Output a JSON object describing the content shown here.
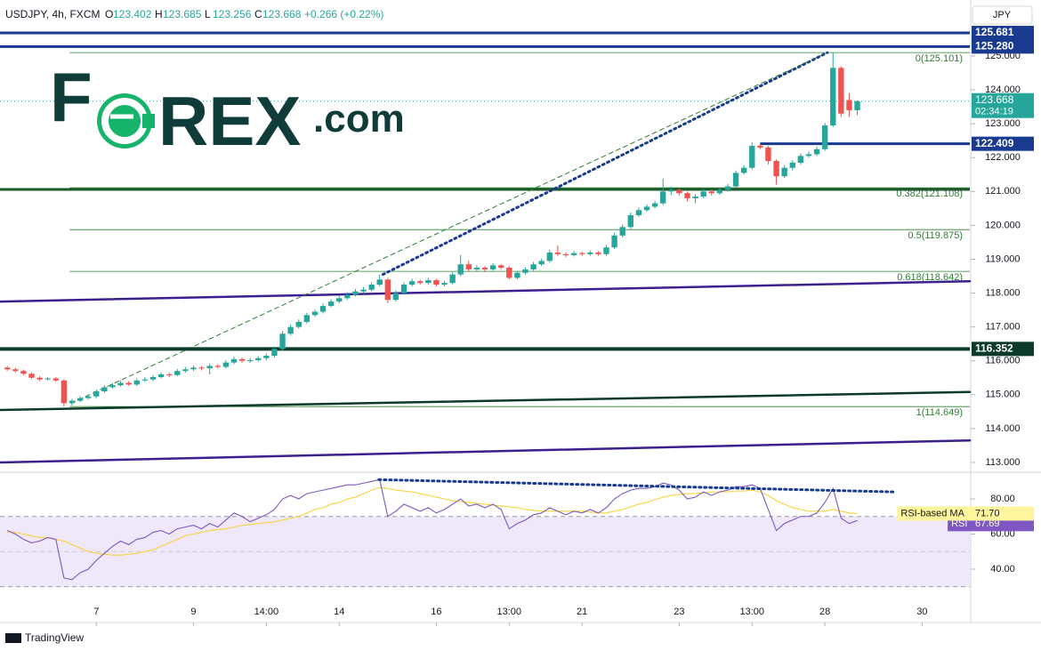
{
  "header": {
    "symbol": "USDJPY, 4h, FXCM",
    "ohlc": [
      {
        "key": "O",
        "value": "123.402"
      },
      {
        "key": "H",
        "value": "123.685"
      },
      {
        "key": "L",
        "value": "123.256"
      },
      {
        "key": "C",
        "value": "123.668"
      }
    ],
    "change": "+0.266 (+0.22%)",
    "currency": "JPY"
  },
  "logo": {
    "parts": [
      "F",
      "REX",
      ".com"
    ]
  },
  "footer": "TradingView",
  "chart_data": [
    {
      "type": "candlestick",
      "up_color": "#26a69a",
      "down_color": "#ef5350",
      "xlim": [
        -0.9,
        118.9
      ],
      "xticks": [
        {
          "value": 11,
          "label": "7"
        },
        {
          "value": 23,
          "label": "9"
        },
        {
          "value": 32,
          "label": "14:00"
        },
        {
          "value": 41,
          "label": "14"
        },
        {
          "value": 53,
          "label": "16"
        },
        {
          "value": 62,
          "label": "13:00"
        },
        {
          "value": 71,
          "label": "21"
        },
        {
          "value": 83,
          "label": "23"
        },
        {
          "value": 92,
          "label": "13:00"
        },
        {
          "value": 101,
          "label": "28"
        },
        {
          "value": 113,
          "label": "30"
        }
      ],
      "ylim": [
        112.737,
        126.654
      ],
      "yticks": [
        {
          "value": 113,
          "label": "113.000"
        },
        {
          "value": 114,
          "label": "114.000"
        },
        {
          "value": 115,
          "label": "115.000"
        },
        {
          "value": 116,
          "label": "116.000"
        },
        {
          "value": 117,
          "label": "117.000"
        },
        {
          "value": 118,
          "label": "118.000"
        },
        {
          "value": 119,
          "label": "119.000"
        },
        {
          "value": 120,
          "label": "120.000"
        },
        {
          "value": 121,
          "label": "121.000"
        },
        {
          "value": 122,
          "label": "122.000"
        },
        {
          "value": 123,
          "label": "123.000"
        },
        {
          "value": 124,
          "label": "124.000"
        },
        {
          "value": 125,
          "label": "125.000"
        }
      ],
      "values": [
        [
          115.8,
          115.85,
          115.7,
          115.75
        ],
        [
          115.75,
          115.8,
          115.65,
          115.7
        ],
        [
          115.7,
          115.74,
          115.58,
          115.62
        ],
        [
          115.62,
          115.66,
          115.46,
          115.5
        ],
        [
          115.5,
          115.55,
          115.4,
          115.45
        ],
        [
          115.45,
          115.52,
          115.42,
          115.48
        ],
        [
          115.48,
          115.52,
          115.38,
          115.42
        ],
        [
          115.42,
          115.46,
          114.65,
          114.75
        ],
        [
          114.75,
          114.88,
          114.68,
          114.82
        ],
        [
          114.82,
          114.96,
          114.78,
          114.9
        ],
        [
          114.9,
          115.0,
          114.86,
          114.95
        ],
        [
          114.95,
          115.15,
          114.9,
          115.1
        ],
        [
          115.1,
          115.28,
          115.05,
          115.22
        ],
        [
          115.22,
          115.34,
          115.18,
          115.28
        ],
        [
          115.28,
          115.42,
          115.24,
          115.35
        ],
        [
          115.35,
          115.4,
          115.26,
          115.3
        ],
        [
          115.3,
          115.48,
          115.26,
          115.42
        ],
        [
          115.42,
          115.52,
          115.38,
          115.45
        ],
        [
          115.45,
          115.58,
          115.4,
          115.52
        ],
        [
          115.52,
          115.66,
          115.48,
          115.6
        ],
        [
          115.6,
          115.65,
          115.52,
          115.58
        ],
        [
          115.58,
          115.76,
          115.54,
          115.7
        ],
        [
          115.7,
          115.82,
          115.65,
          115.75
        ],
        [
          115.75,
          115.86,
          115.7,
          115.8
        ],
        [
          115.8,
          115.85,
          115.72,
          115.78
        ],
        [
          115.78,
          115.92,
          115.6,
          115.85
        ],
        [
          115.85,
          115.9,
          115.78,
          115.82
        ],
        [
          115.82,
          116.02,
          115.78,
          115.95
        ],
        [
          115.95,
          116.12,
          115.9,
          116.05
        ],
        [
          116.05,
          116.1,
          115.95,
          116.0
        ],
        [
          116.0,
          116.08,
          115.94,
          116.02
        ],
        [
          116.02,
          116.14,
          115.98,
          116.08
        ],
        [
          116.08,
          116.22,
          116.02,
          116.15
        ],
        [
          116.15,
          116.42,
          116.1,
          116.35
        ],
        [
          116.35,
          116.88,
          116.3,
          116.8
        ],
        [
          116.8,
          117.08,
          116.75,
          117.0
        ],
        [
          117.0,
          117.22,
          116.95,
          117.15
        ],
        [
          117.15,
          117.42,
          117.1,
          117.35
        ],
        [
          117.35,
          117.52,
          117.3,
          117.45
        ],
        [
          117.45,
          117.7,
          117.4,
          117.62
        ],
        [
          117.62,
          117.82,
          117.58,
          117.75
        ],
        [
          117.75,
          117.92,
          117.7,
          117.85
        ],
        [
          117.85,
          118.02,
          117.8,
          117.95
        ],
        [
          117.95,
          118.12,
          117.9,
          118.05
        ],
        [
          118.05,
          118.18,
          117.98,
          118.1
        ],
        [
          118.1,
          118.32,
          118.05,
          118.25
        ],
        [
          118.25,
          118.55,
          118.2,
          118.4
        ],
        [
          118.4,
          118.45,
          117.7,
          117.8
        ],
        [
          117.8,
          118.08,
          117.75,
          118.0
        ],
        [
          118.0,
          118.32,
          117.95,
          118.25
        ],
        [
          118.25,
          118.42,
          118.2,
          118.35
        ],
        [
          118.35,
          118.4,
          118.25,
          118.3
        ],
        [
          118.3,
          118.45,
          118.25,
          118.38
        ],
        [
          118.38,
          118.42,
          118.2,
          118.25
        ],
        [
          118.25,
          118.36,
          118.2,
          118.3
        ],
        [
          118.3,
          118.62,
          118.26,
          118.55
        ],
        [
          118.55,
          119.12,
          118.5,
          118.85
        ],
        [
          118.85,
          118.95,
          118.65,
          118.7
        ],
        [
          118.7,
          118.82,
          118.65,
          118.75
        ],
        [
          118.75,
          118.8,
          118.62,
          118.7
        ],
        [
          118.7,
          118.88,
          118.66,
          118.82
        ],
        [
          118.82,
          118.86,
          118.7,
          118.75
        ],
        [
          118.75,
          118.8,
          118.4,
          118.45
        ],
        [
          118.45,
          118.66,
          118.4,
          118.6
        ],
        [
          118.6,
          118.76,
          118.55,
          118.7
        ],
        [
          118.7,
          118.92,
          118.65,
          118.85
        ],
        [
          118.85,
          119.02,
          118.8,
          118.95
        ],
        [
          118.95,
          119.28,
          118.9,
          119.2
        ],
        [
          119.2,
          119.4,
          119.1,
          119.15
        ],
        [
          119.15,
          119.2,
          119.06,
          119.12
        ],
        [
          119.12,
          119.24,
          119.08,
          119.18
        ],
        [
          119.18,
          119.22,
          119.1,
          119.15
        ],
        [
          119.15,
          119.26,
          119.1,
          119.2
        ],
        [
          119.2,
          119.24,
          119.1,
          119.15
        ],
        [
          119.15,
          119.42,
          119.1,
          119.35
        ],
        [
          119.35,
          119.78,
          119.3,
          119.7
        ],
        [
          119.7,
          120.02,
          119.65,
          119.95
        ],
        [
          119.95,
          120.38,
          119.9,
          120.3
        ],
        [
          120.3,
          120.52,
          120.25,
          120.45
        ],
        [
          120.45,
          120.62,
          120.4,
          120.55
        ],
        [
          120.55,
          120.72,
          120.5,
          120.65
        ],
        [
          120.65,
          121.38,
          120.6,
          121.0
        ],
        [
          121.0,
          121.15,
          120.9,
          121.05
        ],
        [
          121.05,
          121.1,
          120.88,
          120.95
        ],
        [
          120.95,
          121.0,
          120.7,
          120.8
        ],
        [
          120.8,
          120.92,
          120.65,
          120.85
        ],
        [
          120.85,
          121.08,
          120.8,
          121.0
        ],
        [
          121.0,
          121.05,
          120.88,
          120.95
        ],
        [
          120.95,
          121.12,
          120.9,
          121.05
        ],
        [
          121.05,
          121.22,
          121.0,
          121.15
        ],
        [
          121.15,
          121.62,
          121.1,
          121.55
        ],
        [
          121.55,
          121.78,
          121.5,
          121.7
        ],
        [
          121.7,
          122.45,
          121.65,
          122.35
        ],
        [
          122.35,
          122.4,
          122.25,
          122.3
        ],
        [
          122.3,
          122.35,
          121.8,
          121.9
        ],
        [
          121.9,
          121.95,
          121.2,
          121.45
        ],
        [
          121.45,
          121.78,
          121.4,
          121.7
        ],
        [
          121.7,
          121.92,
          121.62,
          121.85
        ],
        [
          121.85,
          122.12,
          121.8,
          122.05
        ],
        [
          122.05,
          122.18,
          122.0,
          122.1
        ],
        [
          122.1,
          122.32,
          122.05,
          122.25
        ],
        [
          122.25,
          123.02,
          122.2,
          122.95
        ],
        [
          122.95,
          125.101,
          122.9,
          124.65
        ],
        [
          124.65,
          124.7,
          123.2,
          123.3
        ],
        [
          123.7,
          123.9,
          123.2,
          123.4
        ],
        [
          123.402,
          123.685,
          123.256,
          123.668
        ]
      ],
      "last_price": 123.668,
      "countdown": "02:34:19",
      "levels": [
        {
          "value": 125.681,
          "label": "125.681",
          "color": "#1a3a8f",
          "width": 3
        },
        {
          "value": 125.28,
          "label": "125.280",
          "color": "#1a3a8f",
          "width": 3
        },
        {
          "value": 122.409,
          "label": "122.409",
          "color": "#1a3a8f",
          "width": 3,
          "from": 93
        },
        {
          "value": 116.352,
          "label": "116.352",
          "color": "#0d3b2a",
          "width": 4
        }
      ],
      "hlines": [
        {
          "value": 121.06,
          "color": "#1e5a2a",
          "width": 3
        }
      ],
      "fib": [
        {
          "value": 125.101,
          "label": "0(125.101)"
        },
        {
          "value": 121.108,
          "label": "0.382(121.108)"
        },
        {
          "value": 119.875,
          "label": "0.5(119.875)"
        },
        {
          "value": 118.642,
          "label": "0.618(118.642)"
        },
        {
          "value": 114.649,
          "label": "1(114.649)"
        }
      ],
      "fib_from": 7.7,
      "fib_color": "#2e7d32",
      "trendlines": [
        {
          "x": [
            -0.9,
            118.9
          ],
          "y": [
            117.75,
            118.35
          ],
          "color": "#3b1f8f",
          "width": 2.5,
          "style": "solid"
        },
        {
          "x": [
            -0.9,
            118.9
          ],
          "y": [
            114.55,
            115.08
          ],
          "color": "#0d3b2a",
          "width": 2.5,
          "style": "solid"
        },
        {
          "x": [
            -0.9,
            118.9
          ],
          "y": [
            113.0,
            113.65
          ],
          "color": "#3b1f8f",
          "width": 2.5,
          "style": "solid"
        },
        {
          "x": [
            46.4,
            101.3
          ],
          "y": [
            118.55,
            125.1
          ],
          "color": "#1a3a8f",
          "width": 3,
          "style": "dotted"
        },
        {
          "x": [
            7.9,
            101.3
          ],
          "y": [
            114.75,
            125.1
          ],
          "color": "#2e7d32",
          "width": 1,
          "style": "dashed"
        }
      ]
    },
    {
      "type": "line",
      "ylim": [
        9.6,
        94.7
      ],
      "yticks": [
        {
          "value": 40,
          "label": "40.00"
        },
        {
          "value": 60,
          "label": "60.00"
        },
        {
          "value": 80,
          "label": "80.00"
        }
      ],
      "band": [
        30,
        70
      ],
      "midline": 50,
      "band_color": "#efe8fb",
      "series": [
        {
          "name": "RSI",
          "color": "#7e57c2",
          "box_color": "#7e57c2",
          "last_value": 67.69,
          "values": [
            62,
            60,
            57,
            55,
            56,
            58,
            57,
            35,
            34,
            38,
            40,
            45,
            49,
            53,
            56,
            54,
            57,
            58,
            61,
            62,
            60,
            63,
            64,
            65,
            63,
            66,
            64,
            68,
            72,
            70,
            67,
            69,
            71,
            74,
            80,
            82,
            80,
            83,
            84,
            85,
            86,
            87,
            88,
            88,
            89,
            90,
            91,
            70,
            73,
            77,
            75,
            73,
            75,
            72,
            74,
            77,
            80,
            76,
            77,
            75,
            77,
            74,
            63,
            66,
            68,
            71,
            72,
            75,
            73,
            71,
            73,
            72,
            74,
            72,
            75,
            80,
            83,
            85,
            86,
            86,
            87,
            89,
            88,
            85,
            80,
            81,
            84,
            82,
            84,
            85,
            87,
            87,
            88,
            86,
            74,
            62,
            66,
            68,
            70,
            70,
            72,
            78,
            86,
            69,
            66,
            67.69
          ]
        },
        {
          "name": "RSI-based MA",
          "color": "#f5d33b",
          "box_color": "#fff59d",
          "last_value": {
            "value": 71.7,
            "label": "71.70"
          },
          "values": [
            61,
            61,
            60,
            59,
            58,
            58,
            57,
            56,
            54,
            52,
            50,
            49,
            48.5,
            48,
            48,
            48.5,
            49,
            50,
            51,
            53,
            55,
            57,
            59,
            60,
            61,
            62,
            62.5,
            63,
            64,
            65,
            65.5,
            66,
            66.5,
            67,
            68,
            69,
            70,
            72,
            74,
            75,
            77,
            78,
            80,
            81,
            83,
            85,
            86.5,
            86,
            85,
            84.5,
            84,
            83,
            82,
            81,
            80,
            79,
            78.5,
            78,
            77.5,
            77,
            76.5,
            76,
            75.5,
            75,
            74,
            73.5,
            73,
            73,
            73,
            73,
            73,
            73,
            72.5,
            72,
            72,
            73,
            74,
            75.5,
            77,
            78,
            79.5,
            81,
            82,
            82.5,
            83,
            83,
            83.5,
            84,
            84,
            84,
            84.5,
            84.5,
            85,
            84,
            82,
            79,
            77,
            75,
            74,
            73,
            73,
            73,
            74,
            73,
            72,
            71.7
          ]
        }
      ],
      "trendlines": [
        {
          "x": [
            45.9,
            109.6
          ],
          "y": [
            91,
            84
          ],
          "color": "#1a3a8f",
          "width": 3,
          "style": "dotted"
        }
      ]
    }
  ]
}
